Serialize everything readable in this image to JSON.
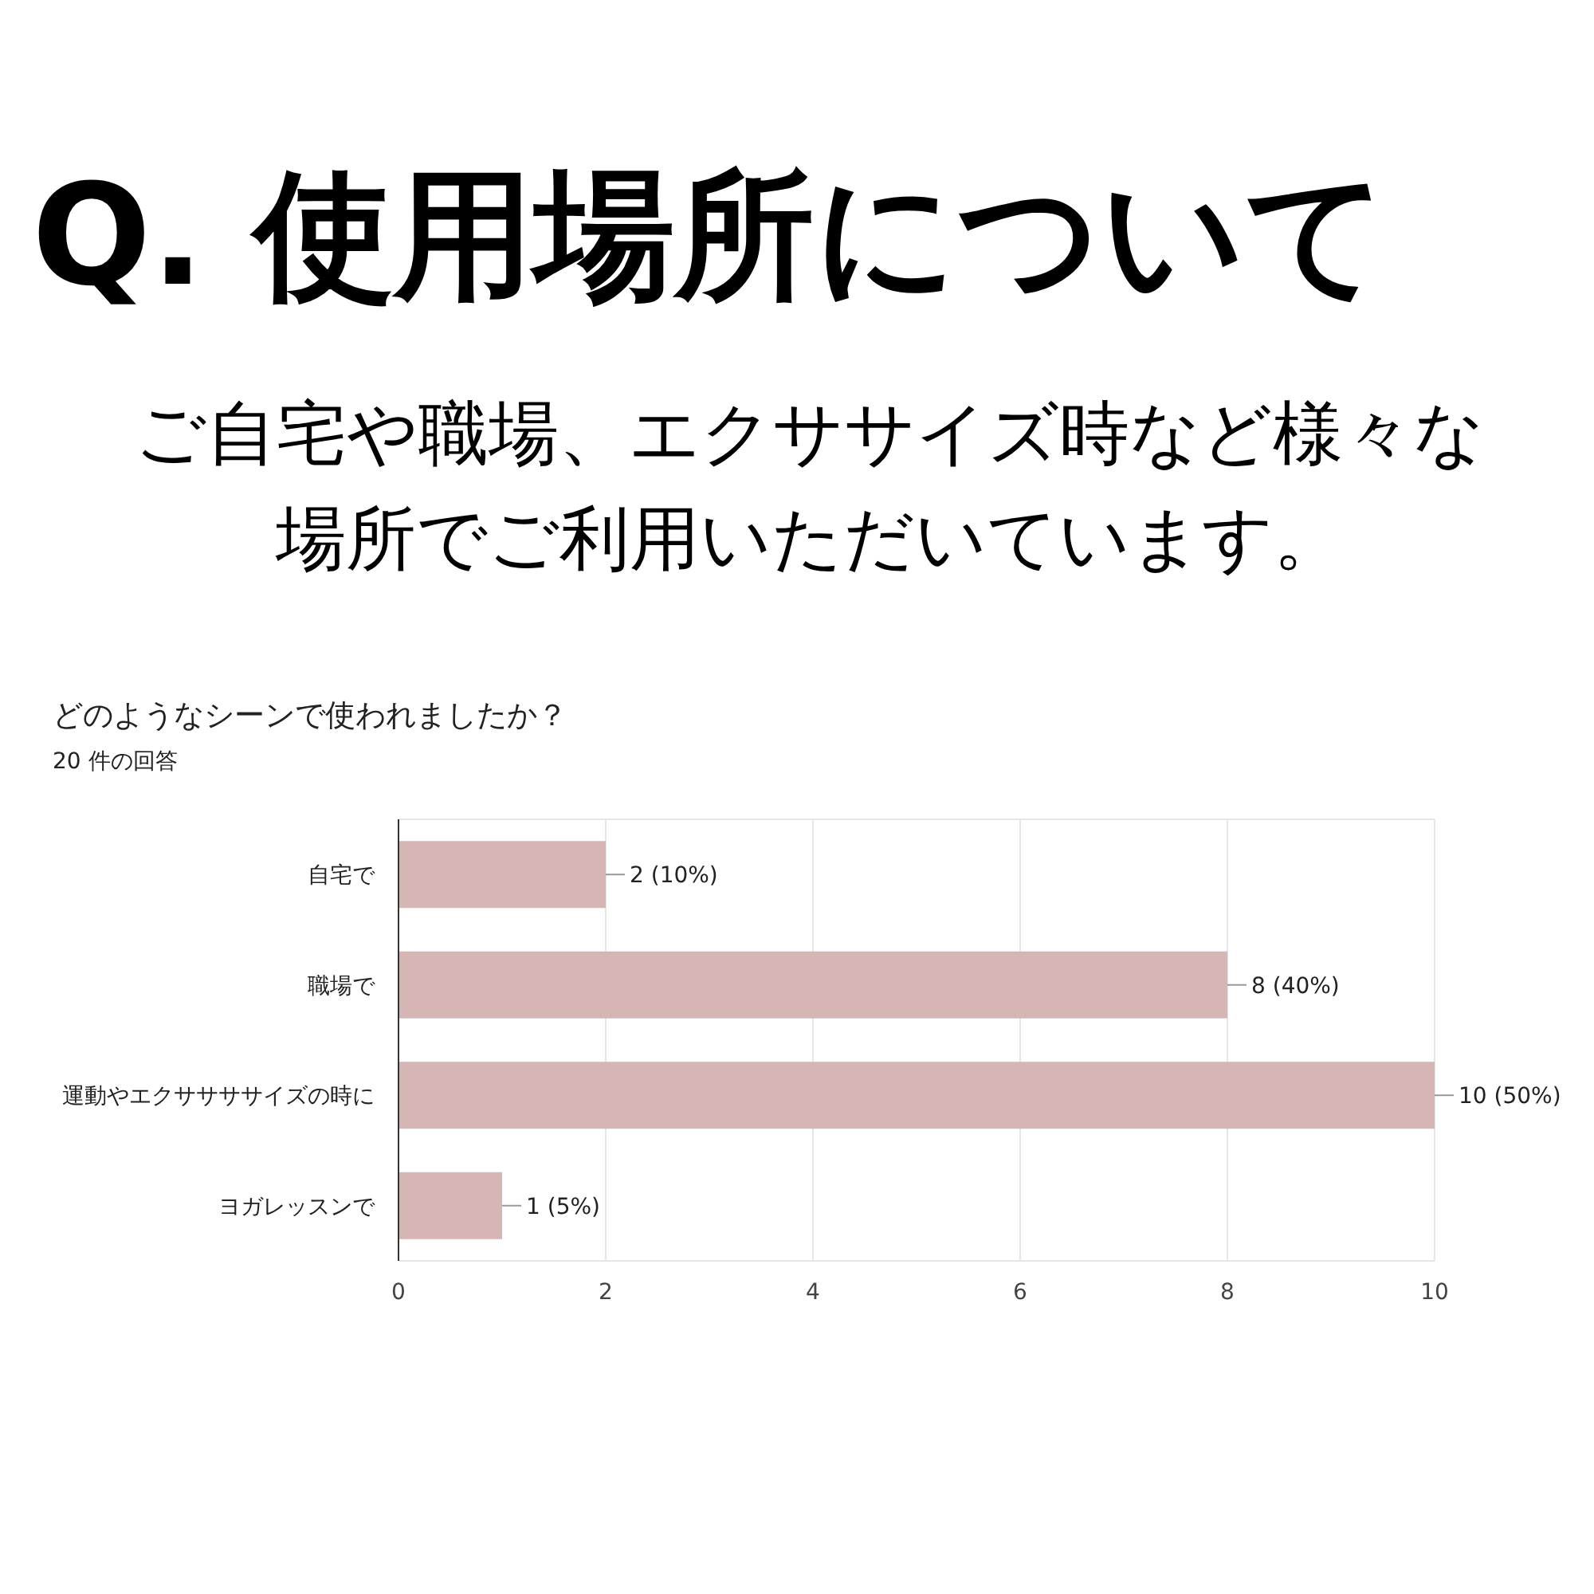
{
  "chart_data": {
    "type": "bar",
    "orientation": "horizontal",
    "title": "Q. 使用場所について",
    "subtitle": "ご自宅や職場、エクササイズ時など様々な場所でご利用いただいています。",
    "annotations": [
      "どのようなシーンで使われましたか？",
      "20 件の回答"
    ],
    "categories": [
      "自宅で",
      "職場で",
      "運動やエクササササイズの時に",
      "ヨガレッスンで"
    ],
    "values": [
      2,
      8,
      10,
      1
    ],
    "value_labels": [
      "2 (10%)",
      "8 (40%)",
      "10 (50%)",
      "1 (5%)"
    ],
    "color": "#d6b6b4",
    "xlim": [
      0,
      10
    ],
    "xticks": [
      0,
      2,
      4,
      6,
      8,
      10
    ],
    "grid": "x"
  }
}
